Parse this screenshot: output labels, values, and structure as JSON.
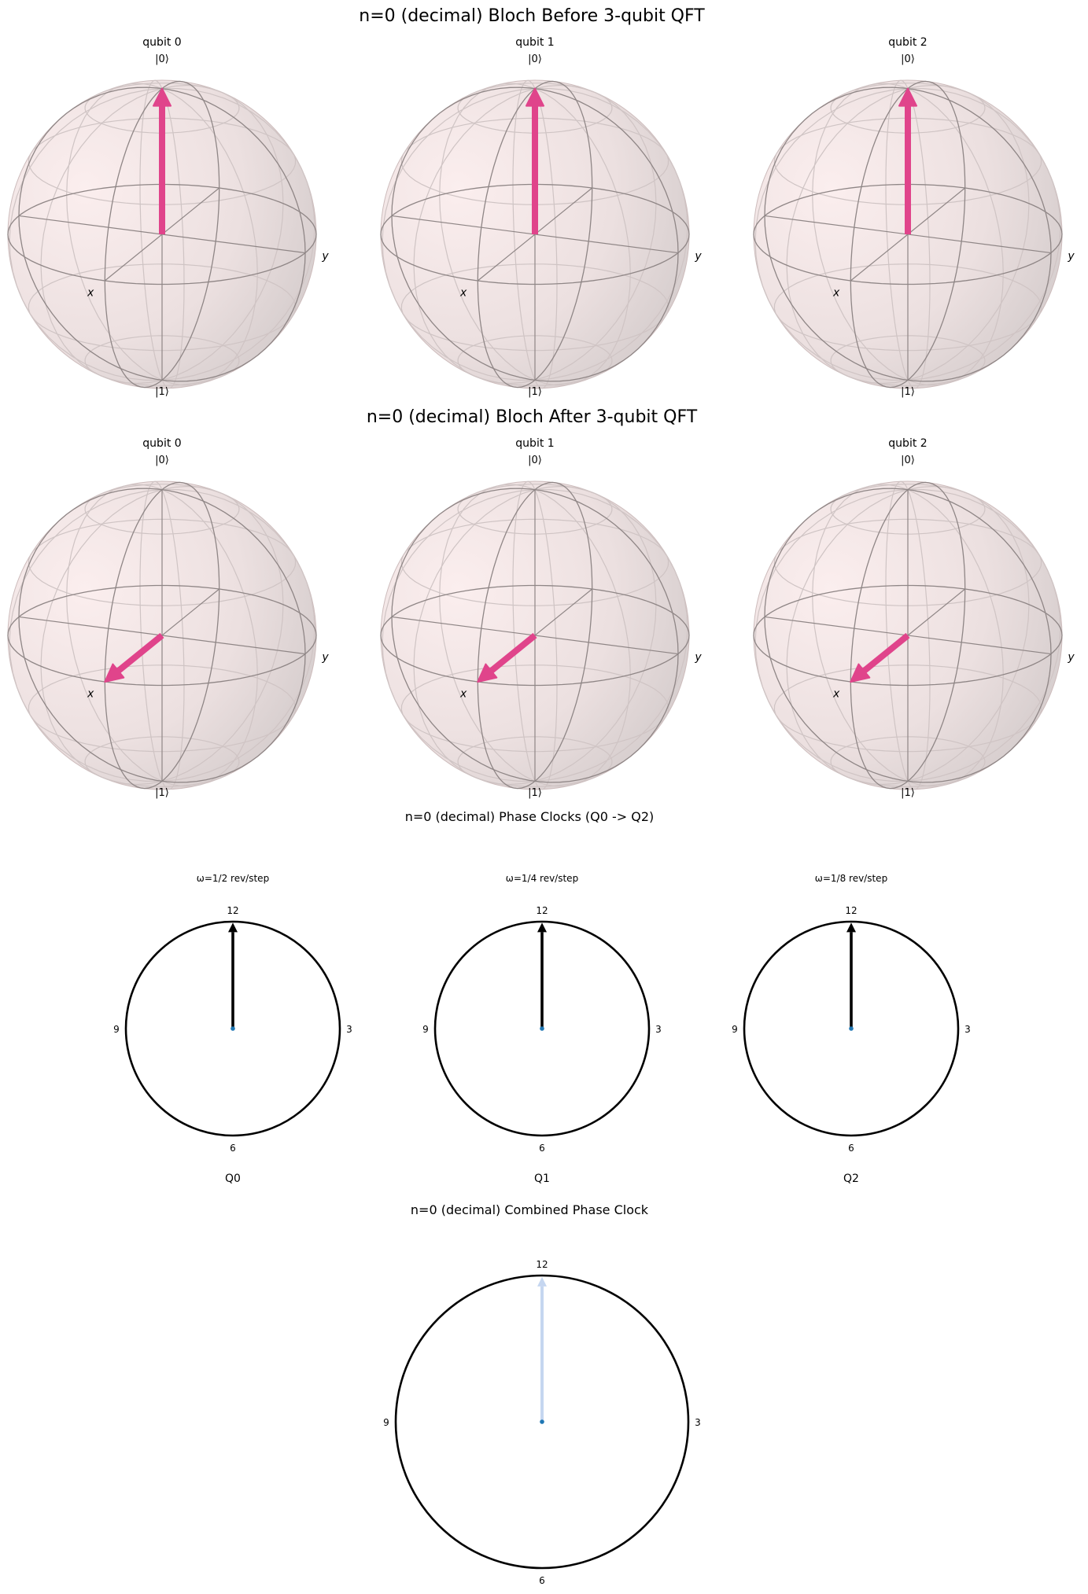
{
  "figure": {
    "before_title": "n=0 (decimal) Bloch Before 3-qubit QFT",
    "after_title": "n=0 (decimal) Bloch After 3-qubit QFT",
    "clocks_title": "n=0 (decimal) Phase Clocks (Q0 -> Q2)",
    "combined_title": "n=0 (decimal) Combined Phase Clock"
  },
  "bloch_labels": {
    "ket0": "|0⟩",
    "ket1": "|1⟩",
    "x": "x",
    "y": "y"
  },
  "clock_labels": {
    "12": "12",
    "3": "3",
    "6": "6",
    "9": "9"
  },
  "colors": {
    "bloch_arrow": "#e0448b",
    "sphere": "#ead9d9",
    "clock_hand": "#000000",
    "combined_hand": "#c5d6f0",
    "center_dot": "#1f77b4"
  },
  "chart_data": [
    {
      "type": "bloch",
      "title": "n=0 (decimal) Bloch Before 3-qubit QFT",
      "qubits": [
        {
          "title": "qubit 0",
          "vector": [
            0,
            0,
            1
          ]
        },
        {
          "title": "qubit 1",
          "vector": [
            0,
            0,
            1
          ]
        },
        {
          "title": "qubit 2",
          "vector": [
            0,
            0,
            1
          ]
        }
      ]
    },
    {
      "type": "bloch",
      "title": "n=0 (decimal) Bloch After 3-qubit QFT",
      "qubits": [
        {
          "title": "qubit 0",
          "vector": [
            1,
            0,
            0
          ]
        },
        {
          "title": "qubit 1",
          "vector": [
            1,
            0,
            0
          ]
        },
        {
          "title": "qubit 2",
          "vector": [
            1,
            0,
            0
          ]
        }
      ]
    },
    {
      "type": "clock",
      "title": "n=0 (decimal) Phase Clocks (Q0 -> Q2)",
      "clocks": [
        {
          "omega": "ω=1/2 rev/step",
          "label": "Q0",
          "phase_rev": 0
        },
        {
          "omega": "ω=1/4 rev/step",
          "label": "Q1",
          "phase_rev": 0
        },
        {
          "omega": "ω=1/8 rev/step",
          "label": "Q2",
          "phase_rev": 0
        }
      ]
    },
    {
      "type": "clock",
      "title": "n=0 (decimal) Combined Phase Clock",
      "phase_rev": 0
    }
  ]
}
